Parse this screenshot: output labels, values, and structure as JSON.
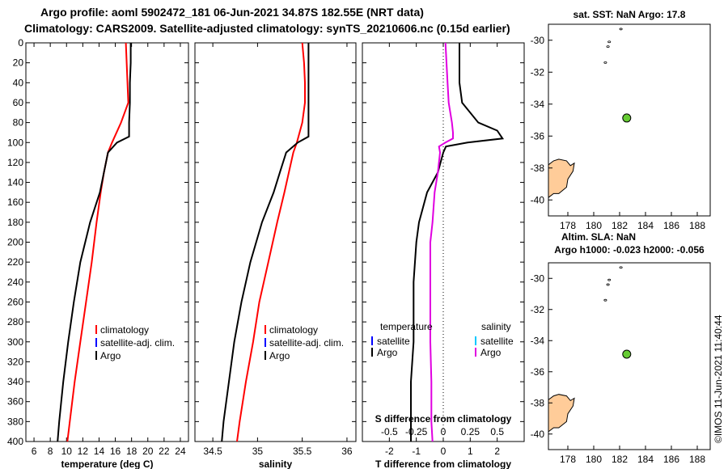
{
  "header": {
    "line1": "Argo profile: aoml 5902472_181 06-Jun-2021 34.87S 182.55E (NRT data)",
    "line2": "Climatology: CARS2009. Satellite-adjusted climatology: synTS_20210606.nc (0.15d earlier)"
  },
  "colors": {
    "climatology": "#ff0000",
    "satellite": "#0000ff",
    "argo": "#000000",
    "salinity_sat": "#00c8ff",
    "salinity_argo": "#e000e0",
    "land": "#ffcc99",
    "float_marker": "#66cc33"
  },
  "watermark": "©IMOS 11-Jun-2021 11:40:44",
  "chart_data": [
    {
      "type": "line",
      "name": "temperature",
      "xlabel": "temperature (deg C)",
      "xlim": [
        5,
        25
      ],
      "xticks": [
        6,
        8,
        10,
        12,
        14,
        16,
        18,
        20,
        22,
        24
      ],
      "ylim": [
        0,
        400
      ],
      "yticks": [
        0,
        20,
        40,
        60,
        80,
        100,
        120,
        140,
        160,
        180,
        200,
        220,
        240,
        260,
        280,
        300,
        320,
        340,
        360,
        380,
        400
      ],
      "legend": [
        "climatology",
        "satellite-adj. clim.",
        "Argo"
      ],
      "series": [
        {
          "name": "climatology",
          "color": "#ff0000",
          "depth": [
            0,
            20,
            40,
            60,
            80,
            100,
            110,
            130,
            150,
            180,
            220,
            260,
            300,
            340,
            380,
            400
          ],
          "values": [
            17.3,
            17.4,
            17.5,
            17.6,
            16.7,
            15.6,
            15.1,
            14.6,
            14.2,
            13.7,
            13.1,
            12.4,
            11.7,
            11.0,
            10.4,
            10.1
          ]
        },
        {
          "name": "Argo",
          "color": "#000000",
          "depth": [
            0,
            20,
            40,
            60,
            80,
            94,
            100,
            110,
            130,
            150,
            180,
            220,
            260,
            300,
            340,
            380,
            400
          ],
          "values": [
            17.9,
            17.9,
            17.8,
            17.8,
            17.7,
            17.7,
            16.2,
            15.1,
            14.6,
            14.1,
            12.9,
            11.7,
            10.9,
            10.2,
            9.6,
            9.1,
            8.9
          ]
        }
      ]
    },
    {
      "type": "line",
      "name": "salinity",
      "xlabel": "salinity",
      "xlim": [
        34.3,
        36.1
      ],
      "xticks": [
        34.5,
        35,
        35.5,
        36
      ],
      "xticklabels": [
        "34.5",
        "35",
        "35.5",
        "36"
      ],
      "ylim": [
        0,
        400
      ],
      "legend": [
        "climatology",
        "satellite-adj. clim.",
        "Argo"
      ],
      "series": [
        {
          "name": "climatology",
          "color": "#ff0000",
          "depth": [
            0,
            20,
            40,
            60,
            80,
            100,
            110,
            130,
            150,
            180,
            220,
            260,
            300,
            340,
            380,
            400
          ],
          "values": [
            35.5,
            35.52,
            35.53,
            35.53,
            35.5,
            35.44,
            35.4,
            35.35,
            35.3,
            35.22,
            35.12,
            35.02,
            34.95,
            34.87,
            34.8,
            34.77
          ]
        },
        {
          "name": "Argo",
          "color": "#000000",
          "depth": [
            0,
            20,
            40,
            60,
            80,
            94,
            100,
            110,
            130,
            150,
            180,
            220,
            260,
            300,
            340,
            380,
            400
          ],
          "values": [
            35.57,
            35.57,
            35.57,
            35.57,
            35.57,
            35.57,
            35.45,
            35.32,
            35.25,
            35.18,
            35.05,
            34.92,
            34.82,
            34.74,
            34.68,
            34.62,
            34.6
          ]
        }
      ]
    },
    {
      "type": "line",
      "name": "difference",
      "xlabel": "T difference from climatology",
      "xlim": [
        -3,
        3
      ],
      "xticks": [
        -2,
        -1,
        0,
        1,
        2
      ],
      "xticklabels": [
        "-2",
        "-1",
        "0",
        "1",
        "2"
      ],
      "top_axis_label": "S difference from climatology",
      "top_ticks": [
        "-0.5",
        "-0.25",
        "0",
        "0.25",
        "0.5"
      ],
      "ylim": [
        0,
        400
      ],
      "legend_temperature": [
        "temperature",
        "satellite",
        "Argo"
      ],
      "legend_salinity": [
        "salinity",
        "satellite",
        "Argo"
      ],
      "series": [
        {
          "name": "T Argo",
          "color": "#000000",
          "depth": [
            0,
            20,
            40,
            60,
            80,
            88,
            96,
            100,
            104,
            110,
            130,
            150,
            180,
            200,
            240,
            300,
            340,
            380,
            400
          ],
          "values": [
            0.6,
            0.6,
            0.6,
            0.7,
            1.3,
            2.0,
            2.2,
            0.9,
            0.1,
            0.0,
            -0.2,
            -0.6,
            -0.9,
            -1.0,
            -1.1,
            -1.1,
            -1.2,
            -1.2,
            -1.2
          ]
        },
        {
          "name": "S Argo",
          "color": "#e000e0",
          "depth": [
            0,
            20,
            40,
            60,
            80,
            90,
            96,
            100,
            104,
            110,
            130,
            150,
            180,
            200,
            240,
            300,
            340,
            380,
            400
          ],
          "values": [
            0.02,
            0.03,
            0.04,
            0.05,
            0.08,
            0.09,
            0.09,
            0.02,
            -0.04,
            -0.03,
            -0.05,
            -0.08,
            -0.1,
            -0.12,
            -0.12,
            -0.12,
            -0.11,
            -0.11,
            -0.1
          ]
        }
      ]
    },
    {
      "type": "scatter",
      "name": "map-sst",
      "title": "sat. SST: NaN Argo: 17.8",
      "xlim": [
        176.5,
        189
      ],
      "ylim": [
        -41,
        -29
      ],
      "xticks": [
        178,
        180,
        182,
        184,
        186,
        188
      ],
      "yticks": [
        -30,
        -32,
        -34,
        -36,
        -38,
        -40
      ],
      "float": {
        "lon": 182.55,
        "lat": -34.87
      },
      "islands": [
        {
          "lon": 182.1,
          "lat": -29.3
        },
        {
          "lon": 181.2,
          "lat": -30.1
        },
        {
          "lon": 181.1,
          "lat": -30.4
        },
        {
          "lon": 180.9,
          "lat": -31.4
        }
      ]
    },
    {
      "type": "scatter",
      "name": "map-sla",
      "title": "Altim. SLA: NaN",
      "subtitle": "Argo h1000: -0.023 h2000: -0.056",
      "xlim": [
        176.5,
        189
      ],
      "ylim": [
        -41,
        -29
      ],
      "xticks": [
        178,
        180,
        182,
        184,
        186,
        188
      ],
      "yticks": [
        -30,
        -32,
        -34,
        -36,
        -38,
        -40
      ],
      "float": {
        "lon": 182.55,
        "lat": -34.87
      },
      "islands": [
        {
          "lon": 182.1,
          "lat": -29.3
        },
        {
          "lon": 181.2,
          "lat": -30.1
        },
        {
          "lon": 181.1,
          "lat": -30.4
        },
        {
          "lon": 180.9,
          "lat": -31.4
        }
      ]
    }
  ]
}
